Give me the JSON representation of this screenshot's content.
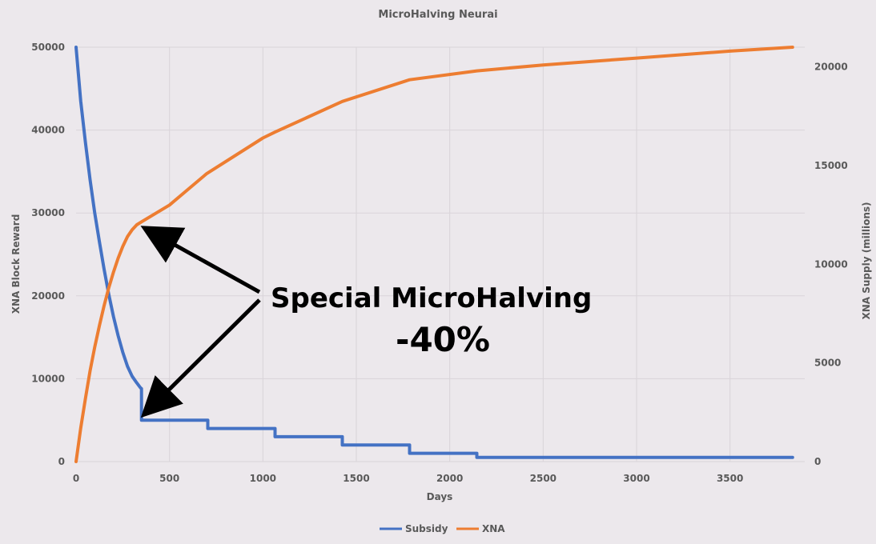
{
  "chart_data": {
    "type": "line",
    "title": "MicroHalving Neurai",
    "xlabel": "Days",
    "ylabel_left": "XNA Block Reward",
    "ylabel_right": "XNA Supply (millions)",
    "xlim": [
      0,
      3900
    ],
    "ylim_left": [
      0,
      50000
    ],
    "ylim_right": [
      0,
      21000
    ],
    "x_ticks": [
      "0",
      "500",
      "1000",
      "1500",
      "2000",
      "2500",
      "3000",
      "3500"
    ],
    "y_ticks_left": [
      "0",
      "10000",
      "20000",
      "30000",
      "40000",
      "50000"
    ],
    "y_ticks_right": [
      "0",
      "5000",
      "10000",
      "15000",
      "20000"
    ],
    "grid": true,
    "legend_position": "bottom",
    "series": [
      {
        "name": "Subsidy",
        "axis": "left",
        "color": "#4472c4",
        "x": [
          0,
          25,
          50,
          75,
          100,
          125,
          150,
          175,
          200,
          225,
          250,
          275,
          300,
          325,
          345,
          350,
          350,
          705,
          705,
          1065,
          1065,
          1425,
          1425,
          1785,
          1785,
          2145,
          2145,
          3835
        ],
        "y": [
          50000,
          43500,
          38500,
          34000,
          30000,
          26500,
          23200,
          20200,
          17500,
          15200,
          13200,
          11500,
          10300,
          9500,
          8900,
          8800,
          5000,
          5000,
          4000,
          4000,
          3000,
          3000,
          2000,
          2000,
          1000,
          1000,
          500,
          500
        ]
      },
      {
        "name": "XNA",
        "axis": "right",
        "color": "#ed7d31",
        "x": [
          0,
          25,
          50,
          75,
          100,
          125,
          150,
          175,
          200,
          225,
          250,
          275,
          300,
          325,
          350,
          500,
          700,
          1000,
          1065,
          1425,
          1785,
          2145,
          2500,
          3000,
          3500,
          3835
        ],
        "y": [
          0,
          1700,
          3200,
          4600,
          5800,
          6900,
          7900,
          8800,
          9600,
          10300,
          10900,
          11400,
          11750,
          12000,
          12150,
          13000,
          14600,
          16400,
          16700,
          18250,
          19350,
          19800,
          20100,
          20450,
          20800,
          21000
        ]
      }
    ],
    "annotations": [
      {
        "text": "Special MicroHalving"
      },
      {
        "text": "-40%"
      }
    ]
  }
}
